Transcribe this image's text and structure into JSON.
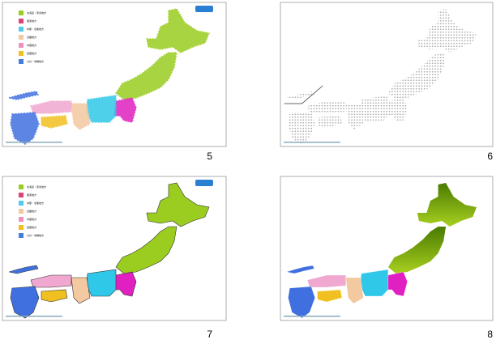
{
  "slides": [
    {
      "number": "5",
      "legend": [
        "北海道・東北地方",
        "関東地方",
        "中部・北陸地方",
        "近畿地方",
        "中国地方",
        "四国地方",
        "九州・沖縄地方"
      ]
    },
    {
      "number": "6"
    },
    {
      "number": "7",
      "legend": [
        "北海道・東北地方",
        "関東地方",
        "中部・北陸地方",
        "近畿地方",
        "中国地方",
        "四国地方",
        "九州・沖縄地方"
      ]
    },
    {
      "number": "8"
    }
  ]
}
